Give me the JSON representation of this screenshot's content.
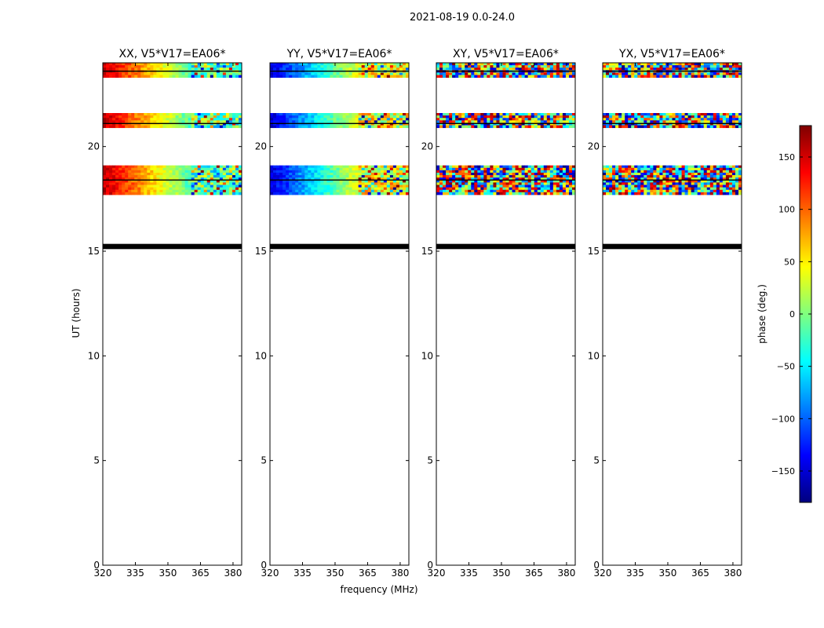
{
  "figure": {
    "suptitle": "2021-08-19 0.0-24.0",
    "xlabel": "frequency (MHz)",
    "ylabel": "UT (hours)"
  },
  "colorbar": {
    "label": "phase (deg.)",
    "range": [
      -180,
      180
    ],
    "ticks": [
      150,
      100,
      50,
      0,
      -50,
      -100,
      -150
    ],
    "tick_labels": [
      "150",
      "100",
      "50",
      "0",
      "−50",
      "−100",
      "−150"
    ],
    "colormap": [
      "#00007f",
      "#0000ff",
      "#007fff",
      "#00ffff",
      "#7fff7f",
      "#ffff00",
      "#ff7f00",
      "#ff0000",
      "#7f0000"
    ]
  },
  "chart_data": {
    "type": "heatmap",
    "x_range": [
      320,
      384
    ],
    "y_range": [
      0,
      24
    ],
    "x_ticks": [
      320,
      335,
      350,
      365,
      380
    ],
    "y_ticks": [
      0,
      5,
      10,
      15,
      20
    ],
    "panels": [
      {
        "title": "XX, V5*V17=EA06*",
        "phase_start": 160,
        "phase_end": -20
      },
      {
        "title": "YY, V5*V17=EA06*",
        "phase_start": -150,
        "phase_end": 40
      },
      {
        "title": "XY, V5*V17=EA06*",
        "phase_start": 0,
        "phase_end": 0
      },
      {
        "title": "YX, V5*V17=EA06*",
        "phase_start": 0,
        "phase_end": 0
      }
    ],
    "data_blocks_ut": [
      [
        17.7,
        19.1
      ],
      [
        20.9,
        21.6
      ],
      [
        23.3,
        24.0
      ]
    ],
    "flag_lines_ut": [
      18.4,
      21.1,
      23.6
    ],
    "flag_band_ut": [
      15.1,
      15.35
    ],
    "fringe_start_mhz": 361
  }
}
